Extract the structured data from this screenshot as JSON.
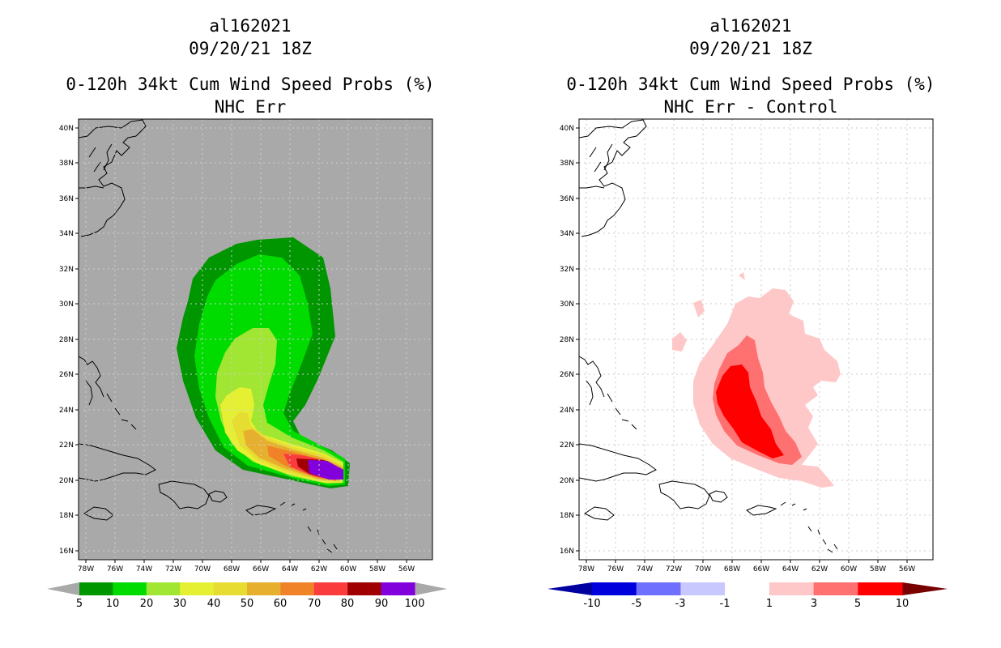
{
  "panels": [
    {
      "storm_id": "al162021",
      "datetime": "09/20/21 18Z",
      "product": "0-120h 34kt Cum Wind Speed Probs (%)",
      "subtitle": "NHC Err",
      "background_color": "#a9a9a9",
      "colorbar": {
        "colors": [
          "#009600",
          "#00dc00",
          "#a0e632",
          "#e6f032",
          "#e6dc32",
          "#e6af2d",
          "#f08228",
          "#fa3c3c",
          "#a00000",
          "#8200dc"
        ],
        "labels": [
          "5",
          "10",
          "20",
          "30",
          "40",
          "50",
          "60",
          "70",
          "80",
          "90",
          "100"
        ]
      }
    },
    {
      "storm_id": "al162021",
      "datetime": "09/20/21 18Z",
      "product": "0-120h 34kt Cum Wind Speed Probs (%)",
      "subtitle": "NHC Err - Control",
      "background_color": "#ffffff",
      "colorbar": {
        "colors": [
          "#0000dc",
          "#7070ff",
          "#c8c8ff",
          "#ffffff",
          "#ffc8c8",
          "#ff7070",
          "#ff0000"
        ],
        "labels": [
          "-10",
          "-5",
          "-3",
          "-1",
          "1",
          "3",
          "5",
          "10"
        ]
      }
    }
  ],
  "axes": {
    "lat_labels": [
      "40N",
      "38N",
      "36N",
      "34N",
      "32N",
      "30N",
      "28N",
      "26N",
      "24N",
      "22N",
      "20N",
      "18N",
      "16N"
    ],
    "lon_labels": [
      "78W",
      "76W",
      "74W",
      "72W",
      "70W",
      "68W",
      "66W",
      "64W",
      "62W",
      "60W",
      "58W",
      "56W"
    ]
  }
}
